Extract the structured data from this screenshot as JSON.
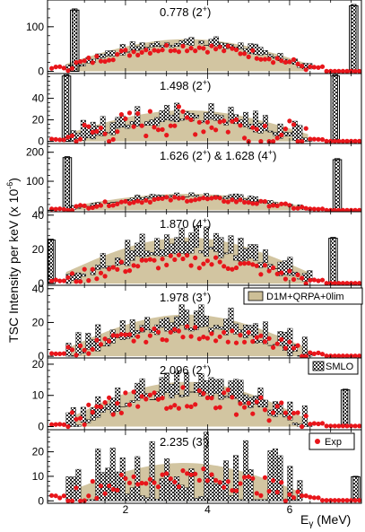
{
  "colors": {
    "exp": "#e8161b",
    "d1m_fill": "#cdbf97",
    "smlo_fill": "#2b2b2b",
    "frame": "#000000"
  },
  "chart_data": {
    "type": "bar",
    "ylabel_main": "TSC Intensity per keV (x 10",
    "ylabel_exp": "-6",
    "ylabel_close": ")",
    "xlabel_main": "E",
    "xlabel_sub": "γ",
    "xlabel_units": " (MeV)",
    "xlim": [
      0.1,
      7.75
    ],
    "x_ticks": [
      2,
      4,
      6
    ],
    "legend": {
      "d1m": "D1M+QRPA+0lim",
      "smlo": "SMLO",
      "exp": "Exp"
    },
    "panels": [
      {
        "title_main": "0.778 (2",
        "title_sup": "+",
        "title_end": ")",
        "ylim": [
          -5,
          160
        ],
        "yticks": [
          0,
          100
        ],
        "ytick_labels": [
          "0",
          "100"
        ],
        "amp": 55,
        "lo": 15,
        "spikes": [
          [
            0.7,
            140
          ],
          [
            7.5,
            150
          ]
        ],
        "exp_amp": 52,
        "exp_noise": 10,
        "exp_lo": 10,
        "noise": 12
      },
      {
        "title_main": "1.498 (2",
        "title_sup": "+",
        "title_end": ")",
        "ylim": [
          -2,
          63
        ],
        "yticks": [
          0,
          20,
          40
        ],
        "ytick_labels": [
          "0",
          "20",
          "40"
        ],
        "amp": 22,
        "lo": 6,
        "spikes": [
          [
            0.5,
            62
          ],
          [
            7.05,
            62
          ]
        ],
        "exp_amp": 20,
        "exp_noise": 14,
        "exp_lo": 2,
        "noise": 10
      },
      {
        "title_main": "1.626 (2",
        "title_sup": "+",
        "title_end": ") & 1.628 (4",
        "title_sup2": "+",
        "title_end2": ")",
        "ylim": [
          -5,
          230
        ],
        "yticks": [
          0,
          100,
          200
        ],
        "ytick_labels": [
          "0",
          "100",
          "200"
        ],
        "amp": 45,
        "lo": 10,
        "spikes": [
          [
            0.52,
            185
          ],
          [
            7.1,
            178
          ]
        ],
        "exp_amp": 40,
        "exp_noise": 8,
        "exp_lo": 5,
        "noise": 10
      },
      {
        "title_main": "1.870 (4",
        "title_sup": "+",
        "title_end": ")",
        "ylim": [
          -1,
          42
        ],
        "yticks": [
          0,
          20,
          40
        ],
        "ytick_labels": [
          "0",
          "20",
          "40"
        ],
        "amp": 20,
        "lo": 6,
        "spikes": [
          [
            0.12,
            26
          ],
          [
            7.0,
            27
          ]
        ],
        "exp_amp": 13,
        "exp_noise": 4,
        "exp_lo": 2,
        "noise": 8
      },
      {
        "title_main": "1.978 (3",
        "title_sup": "+",
        "title_end": ")",
        "ylim": [
          -1,
          42
        ],
        "yticks": [
          0,
          20,
          40
        ],
        "ytick_labels": [
          "0",
          "20",
          "40"
        ],
        "amp": 20,
        "lo": 4,
        "spikes": [],
        "exp_amp": 14,
        "exp_noise": 4,
        "exp_lo": 2,
        "noise": 8
      },
      {
        "title_main": "2.096 (2",
        "title_sup": "+",
        "title_end": ")",
        "ylim": [
          -1,
          22
        ],
        "yticks": [
          0,
          10,
          20
        ],
        "ytick_labels": [
          "0",
          "10",
          "20"
        ],
        "amp": 12,
        "lo": 2,
        "spikes": [
          [
            7.3,
            12
          ]
        ],
        "exp_amp": 10,
        "exp_noise": 4,
        "exp_lo": 1,
        "noise": 4
      },
      {
        "title_main": "2.235 (3",
        "title_sup": "-",
        "title_end": ")",
        "ylim": [
          -1,
          29
        ],
        "yticks": [
          0,
          10,
          20
        ],
        "ytick_labels": [
          "0",
          "10",
          "20"
        ],
        "amp": 12,
        "lo": 3,
        "spikes": [
          [
            7.55,
            10
          ]
        ],
        "exp_amp": 9,
        "exp_noise": 4,
        "exp_lo": 2,
        "noise": 14,
        "wide": true
      }
    ]
  }
}
